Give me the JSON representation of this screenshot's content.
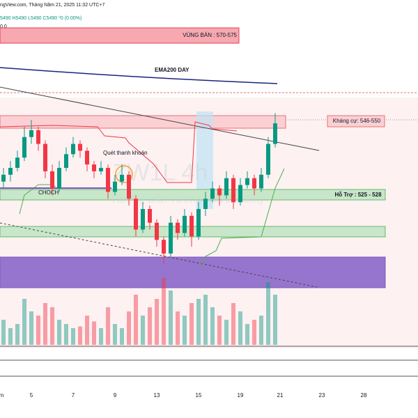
{
  "header": {
    "source": "ngView.com, Tháng Năm 21, 2025 11:32 UTC+7",
    "ohlc": "5490 H5490 L5490 C5490 ⁰0 (0.00%)",
    "indicator": "0 0"
  },
  "labels": {
    "sell_zone": "VÙNG BÁN : 570-575",
    "ema": "EMA200 DAY",
    "resistance": "Kháng cự: 546-550",
    "liquidity": "Quét thanh khoản",
    "choch": "CHOCH",
    "support": "Hỗ Trợ : 525 - 528",
    "watermark": "ZW1L 4h",
    "watermark_sub": "Hướng Dẫn Tương Lai Academy"
  },
  "x_axis": [
    "m",
    "5",
    "7",
    "9",
    "13",
    "15",
    "19",
    "21",
    "23",
    "28"
  ],
  "chart_data": {
    "type": "candlestick",
    "up_color": "#089981",
    "down_color": "#f23645",
    "ylim": [
      462,
      584
    ],
    "volume_ylim": [
      0,
      100
    ],
    "candles": [
      [
        531,
        535,
        529,
        533
      ],
      [
        533,
        537,
        531,
        535
      ],
      [
        535,
        540,
        534,
        538
      ],
      [
        538,
        547,
        537,
        544
      ],
      [
        544,
        549,
        542,
        546
      ],
      [
        546,
        547,
        540,
        542
      ],
      [
        542,
        543,
        532,
        534
      ],
      [
        534,
        536,
        527,
        529
      ],
      [
        529,
        537,
        528,
        535
      ],
      [
        535,
        541,
        534,
        539
      ],
      [
        539,
        544,
        538,
        542
      ],
      [
        542,
        543,
        538,
        540
      ],
      [
        540,
        541,
        534,
        536
      ],
      [
        536,
        537,
        532,
        534
      ],
      [
        534,
        537,
        533,
        535
      ],
      [
        535,
        536,
        526,
        528
      ],
      [
        528,
        533,
        527,
        531
      ],
      [
        531,
        536,
        530,
        533
      ],
      [
        533,
        534,
        524,
        526
      ],
      [
        526,
        527,
        515,
        517
      ],
      [
        517,
        525,
        516,
        523
      ],
      [
        523,
        524,
        517,
        519
      ],
      [
        519,
        520,
        512,
        514
      ],
      [
        514,
        515,
        507,
        510
      ],
      [
        510,
        521,
        509,
        519
      ],
      [
        519,
        520,
        514,
        516
      ],
      [
        516,
        523,
        515,
        521
      ],
      [
        521,
        522,
        512,
        515
      ],
      [
        515,
        525,
        514,
        523
      ],
      [
        523,
        528,
        521,
        526
      ],
      [
        526,
        531,
        525,
        529
      ],
      [
        529,
        530,
        524,
        527
      ],
      [
        527,
        534,
        526,
        532
      ],
      [
        532,
        533,
        523,
        525
      ],
      [
        525,
        532,
        524,
        530
      ],
      [
        530,
        534,
        529,
        532
      ],
      [
        532,
        533,
        527,
        529
      ],
      [
        529,
        535,
        528,
        533
      ],
      [
        533,
        544,
        532,
        542
      ],
      [
        542,
        551,
        541,
        548
      ]
    ],
    "volumes": [
      30,
      20,
      25,
      55,
      40,
      35,
      50,
      45,
      30,
      25,
      20,
      22,
      35,
      28,
      20,
      45,
      25,
      20,
      40,
      60,
      35,
      45,
      55,
      80,
      65,
      40,
      35,
      50,
      55,
      60,
      45,
      35,
      30,
      50,
      40,
      25,
      30,
      35,
      75,
      60
    ]
  }
}
